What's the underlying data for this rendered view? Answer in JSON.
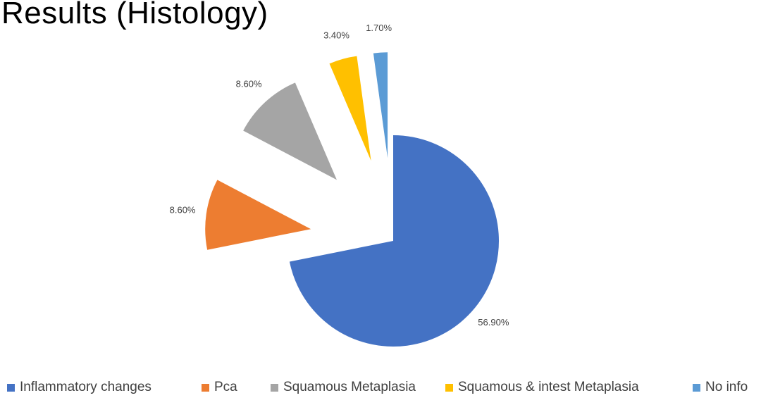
{
  "page": {
    "title": "Results (Histology)"
  },
  "chart_data": {
    "type": "pie",
    "title": "",
    "legend_position": "bottom",
    "slices": [
      {
        "name": "Inflammatory changes",
        "value": 56.9,
        "label": "56.90%",
        "color": "#4472C4",
        "exploded": false
      },
      {
        "name": "Pca",
        "value": 8.6,
        "label": "8.60%",
        "color": "#ED7D31",
        "exploded": true
      },
      {
        "name": "Squamous Metaplasia",
        "value": 8.6,
        "label": "8.60%",
        "color": "#A5A5A5",
        "exploded": true
      },
      {
        "name": "Squamous & intest Metaplasia",
        "value": 3.4,
        "label": "3.40%",
        "color": "#FFC000",
        "exploded": true
      },
      {
        "name": "No info",
        "value": 1.7,
        "label": "1.70%",
        "color": "#5B9BD5",
        "exploded": true
      }
    ]
  }
}
